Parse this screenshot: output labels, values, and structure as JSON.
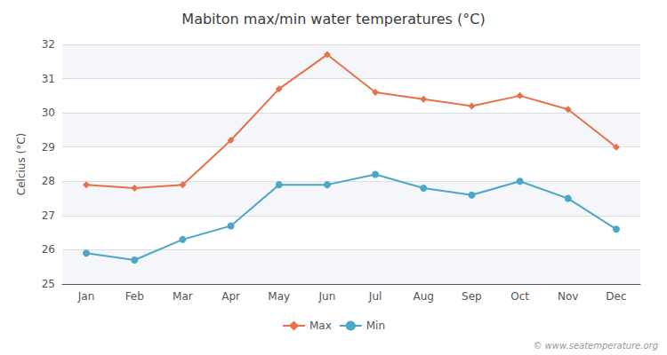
{
  "chart_data": {
    "type": "line",
    "title": "Mabiton max/min water temperatures (°C)",
    "ylabel": "Celcius (°C)",
    "categories": [
      "Jan",
      "Feb",
      "Mar",
      "Apr",
      "May",
      "Jun",
      "Jul",
      "Aug",
      "Sep",
      "Oct",
      "Nov",
      "Dec"
    ],
    "series": [
      {
        "name": "Max",
        "color": "#e8714a",
        "marker": "diamond",
        "values": [
          27.9,
          27.8,
          27.9,
          29.2,
          30.7,
          31.7,
          30.6,
          30.4,
          30.2,
          30.5,
          30.1,
          29.0
        ]
      },
      {
        "name": "Min",
        "color": "#4ba6c8",
        "marker": "circle",
        "values": [
          25.9,
          25.7,
          26.3,
          26.7,
          27.9,
          27.9,
          28.2,
          27.8,
          27.6,
          28.0,
          27.5,
          26.6
        ]
      }
    ],
    "ylim": [
      25,
      32
    ],
    "yticks": [
      25,
      26,
      27,
      28,
      29,
      30,
      31,
      32
    ],
    "grid": true,
    "legend": "bottom",
    "annotations": [
      "© www.seatemperature.org"
    ]
  }
}
